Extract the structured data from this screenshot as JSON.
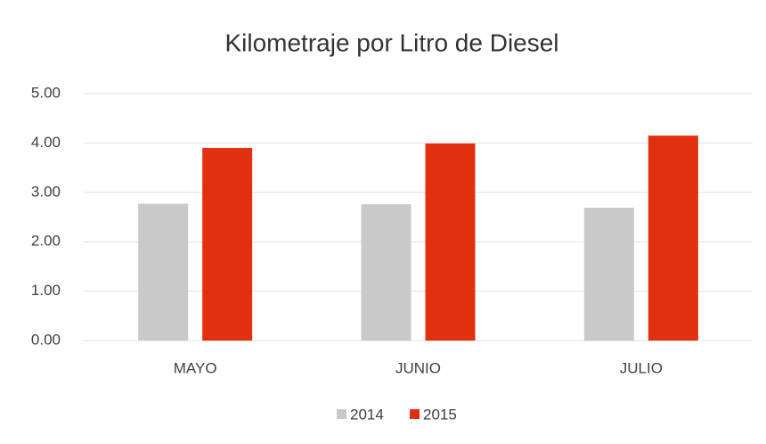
{
  "chart_data": {
    "type": "bar",
    "title": "Kilometraje por Litro de Diesel",
    "categories": [
      "MAYO",
      "JUNIO",
      "JULIO"
    ],
    "series": [
      {
        "name": "2014",
        "color": "#c9c9c9",
        "values": [
          2.77,
          2.76,
          2.69
        ]
      },
      {
        "name": "2015",
        "color": "#e1300f",
        "values": [
          3.9,
          3.99,
          4.15
        ]
      }
    ],
    "ylim": [
      0,
      5
    ],
    "yticks": [
      {
        "value": 0,
        "label": "0.00"
      },
      {
        "value": 1,
        "label": "1.00"
      },
      {
        "value": 2,
        "label": "2.00"
      },
      {
        "value": 3,
        "label": "3.00"
      },
      {
        "value": 4,
        "label": "4.00"
      },
      {
        "value": 5,
        "label": "5.00"
      }
    ],
    "grid": true,
    "legend": "bottom"
  }
}
